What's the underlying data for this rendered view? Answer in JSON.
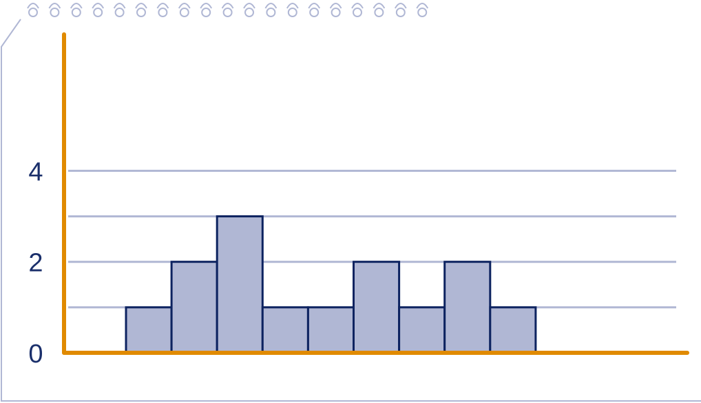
{
  "chart_data": {
    "type": "bar",
    "categories": [
      null,
      null,
      null,
      null,
      null,
      null,
      null,
      null,
      null
    ],
    "values": [
      1,
      2,
      3,
      1,
      1,
      2,
      1,
      2,
      1
    ],
    "color": "#b0b7d4",
    "ylim": [
      0,
      7
    ],
    "yticks": [
      0,
      {
        "value": 1,
        "label": null
      },
      2,
      {
        "value": 3,
        "label": null
      },
      4
    ],
    "grid": true
  }
}
